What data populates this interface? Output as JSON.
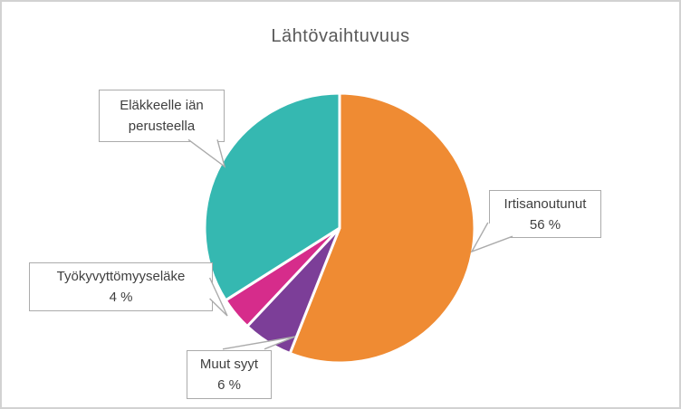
{
  "chart_data": {
    "type": "pie",
    "title": "Lähtövaihtuvuus",
    "legend": "none",
    "start_angle_deg": 0,
    "direction": "clockwise",
    "units": "%",
    "slices": [
      {
        "id": "irtisanoutunut",
        "label": "Irtisanoutunut",
        "value": 56,
        "percent_label": "56 %",
        "color": "#EF8B33",
        "callout_lines": [
          "Irtisanoutunut",
          "56 %"
        ]
      },
      {
        "id": "muut-syyt",
        "label": "Muut syyt",
        "value": 6,
        "percent_label": "6 %",
        "color": "#7C3E98",
        "callout_lines": [
          "Muut syyt",
          "6 %"
        ]
      },
      {
        "id": "tyokyvyttomyyselake",
        "label": "Työkyvyttömyyseläke",
        "value": 4,
        "percent_label": "4 %",
        "color": "#D62C8B",
        "callout_lines": [
          "Työkyvyttömyyseläke",
          "4 %"
        ]
      },
      {
        "id": "elakkeelle-ian-perusteella",
        "label": "Eläkkeelle iän perusteella",
        "value": 34,
        "percent_label": "",
        "color": "#35B8B1",
        "callout_lines": [
          "Eläkkeelle iän",
          "perusteella"
        ]
      }
    ],
    "colors": {
      "title_text": "#595959",
      "label_text": "#3F3F3F",
      "callout_border": "#ABABAB",
      "frame_border": "#D2D2D2",
      "slice_separator": "#FFFFFF"
    }
  }
}
